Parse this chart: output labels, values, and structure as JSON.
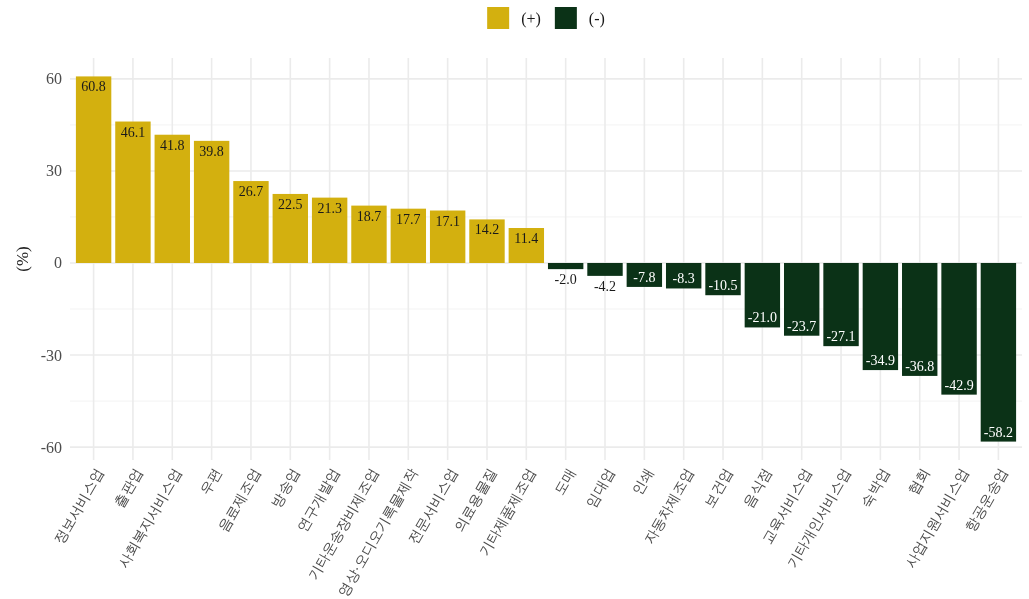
{
  "chart_data": {
    "type": "bar",
    "ylabel": "(%)",
    "categories": [
      "정보서비스업",
      "출판업",
      "사회복지서비스업",
      "우편",
      "음료제조업",
      "방송업",
      "연구개발업",
      "기타운송장비제조업",
      "영상·오디오기록물제작",
      "전문서비스업",
      "의료용물질",
      "기타제품제조업",
      "도매",
      "임대업",
      "인쇄",
      "자동차제조업",
      "보건업",
      "음식점",
      "교육서비스업",
      "기타개인서비스업",
      "숙박업",
      "협회",
      "사업지원서비스업",
      "항공운송업"
    ],
    "series": [
      {
        "name": "(+)",
        "color": "#d3b00f",
        "values": [
          60.8,
          46.1,
          41.8,
          39.8,
          26.7,
          22.5,
          21.3,
          18.7,
          17.7,
          17.1,
          14.2,
          11.4,
          null,
          null,
          null,
          null,
          null,
          null,
          null,
          null,
          null,
          null,
          null,
          null
        ],
        "value_labels": [
          "60.8",
          "46.1",
          "41.8",
          "39.8",
          "26.7",
          "22.5",
          "21.3",
          "18.7",
          "17.7",
          "17.1",
          "14.2",
          "11.4",
          null,
          null,
          null,
          null,
          null,
          null,
          null,
          null,
          null,
          null,
          null,
          null
        ]
      },
      {
        "name": "(-)",
        "color": "#0b3217",
        "values": [
          null,
          null,
          null,
          null,
          null,
          null,
          null,
          null,
          null,
          null,
          null,
          null,
          -2.0,
          -4.2,
          -7.8,
          -8.3,
          -10.5,
          -21.0,
          -23.7,
          -27.1,
          -34.9,
          -36.8,
          -42.9,
          -58.2
        ],
        "value_labels": [
          null,
          null,
          null,
          null,
          null,
          null,
          null,
          null,
          null,
          null,
          null,
          null,
          "-2.0",
          "-4.2",
          "-7.8",
          "-8.3",
          "-10.5",
          "-21.0",
          "-23.7",
          "-27.1",
          "-34.9",
          "-36.8",
          "-42.9",
          "-58.2"
        ]
      }
    ],
    "stacked": true,
    "ylim": [
      -64.2,
      66.8
    ],
    "yticks": [
      -60,
      -30,
      0,
      30,
      60
    ],
    "grid": true,
    "legend": "top"
  }
}
